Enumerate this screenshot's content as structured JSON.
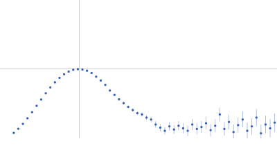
{
  "chart_data": {
    "type": "scatter",
    "color": "#3560b5",
    "error_color": "#9fb4de",
    "xlim": [
      0,
      6.05
    ],
    "ylim": [
      0,
      2.2
    ],
    "xgrid": [
      1.732
    ],
    "ygrid": [
      1.104
    ],
    "grid_color": "#d0d0d0",
    "x": [
      0.3,
      0.4,
      0.5,
      0.6,
      0.7,
      0.8,
      0.9,
      1.0,
      1.1,
      1.2,
      1.3,
      1.4,
      1.5,
      1.6,
      1.7,
      1.8,
      1.9,
      2.0,
      2.1,
      2.2,
      2.3,
      2.4,
      2.5,
      2.6,
      2.7,
      2.8,
      2.9,
      3.0,
      3.1,
      3.2,
      3.3,
      3.4,
      3.5,
      3.6,
      3.7,
      3.8,
      3.9,
      4.0,
      4.1,
      4.2,
      4.3,
      4.4,
      4.5,
      4.6,
      4.7,
      4.8,
      4.9,
      5.0,
      5.1,
      5.2,
      5.3,
      5.4,
      5.5,
      5.6,
      5.7,
      5.8,
      5.9,
      6.0
    ],
    "values": [
      0.087,
      0.152,
      0.23,
      0.319,
      0.416,
      0.517,
      0.618,
      0.717,
      0.809,
      0.891,
      0.962,
      1.019,
      1.062,
      1.09,
      1.1,
      1.095,
      1.075,
      1.04,
      0.98,
      0.92,
      0.85,
      0.76,
      0.69,
      0.62,
      0.56,
      0.5,
      0.45,
      0.4,
      0.38,
      0.33,
      0.3,
      0.22,
      0.17,
      0.12,
      0.19,
      0.14,
      0.2,
      0.16,
      0.12,
      0.22,
      0.15,
      0.18,
      0.24,
      0.13,
      0.2,
      0.38,
      0.15,
      0.26,
      0.1,
      0.21,
      0.3,
      0.12,
      0.19,
      0.33,
      0.08,
      0.22,
      0.16,
      0.25
    ],
    "errors": [
      0.004,
      0.004,
      0.004,
      0.005,
      0.005,
      0.005,
      0.006,
      0.006,
      0.006,
      0.007,
      0.007,
      0.008,
      0.008,
      0.009,
      0.01,
      0.01,
      0.011,
      0.012,
      0.013,
      0.014,
      0.015,
      0.017,
      0.018,
      0.02,
      0.022,
      0.024,
      0.026,
      0.03,
      0.035,
      0.04,
      0.045,
      0.05,
      0.055,
      0.06,
      0.065,
      0.07,
      0.075,
      0.08,
      0.085,
      0.09,
      0.09,
      0.095,
      0.1,
      0.1,
      0.105,
      0.11,
      0.11,
      0.115,
      0.12,
      0.12,
      0.125,
      0.13,
      0.13,
      0.135,
      0.14,
      0.14,
      0.145,
      0.15
    ]
  }
}
